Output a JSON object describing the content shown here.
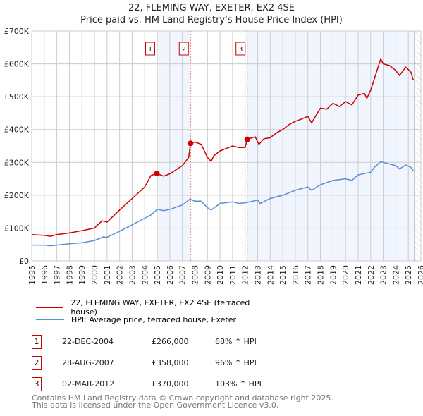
{
  "chart_data": {
    "type": "line",
    "title": "22, FLEMING WAY, EXETER, EX2 4SE",
    "subtitle": "Price paid vs. HM Land Registry's House Price Index (HPI)",
    "xlim": [
      1995,
      2026
    ],
    "ylim": [
      0,
      700000
    ],
    "x_ticks": [
      "1995",
      "1996",
      "1997",
      "1998",
      "1999",
      "2000",
      "2001",
      "2002",
      "2003",
      "2004",
      "2005",
      "2006",
      "2007",
      "2008",
      "2009",
      "2010",
      "2011",
      "2012",
      "2013",
      "2014",
      "2015",
      "2016",
      "2017",
      "2018",
      "2019",
      "2020",
      "2021",
      "2022",
      "2023",
      "2024",
      "2025",
      "2026"
    ],
    "y_ticks": [
      {
        "v": 0,
        "label": "£0"
      },
      {
        "v": 100000,
        "label": "£100K"
      },
      {
        "v": 200000,
        "label": "£200K"
      },
      {
        "v": 300000,
        "label": "£300K"
      },
      {
        "v": 400000,
        "label": "£400K"
      },
      {
        "v": 500000,
        "label": "£500K"
      },
      {
        "v": 600000,
        "label": "£600K"
      },
      {
        "v": 700000,
        "label": "£700K"
      }
    ],
    "grid": true,
    "series": [
      {
        "name": "22, FLEMING WAY, EXETER, EX2 4SE (terraced house)",
        "color": "#cc0000",
        "x": [
          1995,
          1996,
          1996.5,
          1997,
          1998,
          1999,
          2000,
          2000.6,
          2001,
          2002,
          2003,
          2004,
          2004.5,
          2004.97,
          2005.5,
          2006,
          2007,
          2007.5,
          2007.65,
          2008,
          2008.5,
          2009,
          2009.3,
          2009.5,
          2010,
          2011,
          2011.5,
          2012,
          2012.17,
          2012.8,
          2013.1,
          2013.5,
          2014,
          2014.5,
          2015,
          2015.5,
          2016,
          2016.5,
          2017,
          2017.3,
          2017.6,
          2018,
          2018.5,
          2019,
          2019.5,
          2020,
          2020.5,
          2021,
          2021.5,
          2021.7,
          2022,
          2022.3,
          2022.8,
          2023,
          2023.5,
          2024,
          2024.3,
          2024.8,
          2025.2,
          2025.4
        ],
        "y": [
          80000,
          78000,
          75000,
          80000,
          85000,
          92000,
          100000,
          122000,
          118000,
          155000,
          190000,
          225000,
          260000,
          266000,
          258000,
          265000,
          290000,
          315000,
          358000,
          362000,
          355000,
          315000,
          303000,
          320000,
          335000,
          350000,
          345000,
          345000,
          370000,
          378000,
          355000,
          372000,
          375000,
          390000,
          400000,
          415000,
          425000,
          432000,
          440000,
          420000,
          440000,
          465000,
          462000,
          480000,
          470000,
          485000,
          475000,
          505000,
          510000,
          495000,
          520000,
          555000,
          615000,
          600000,
          595000,
          580000,
          565000,
          590000,
          575000,
          550000
        ]
      },
      {
        "name": "HPI: Average price, terraced house, Exeter",
        "color": "#5b8fd4",
        "x": [
          1995,
          1996,
          1996.5,
          1997,
          1998,
          1999,
          2000,
          2000.7,
          2001,
          2002,
          2003,
          2004,
          2004.5,
          2005,
          2005.5,
          2006,
          2007,
          2007.6,
          2008,
          2008.5,
          2009,
          2009.3,
          2010,
          2011,
          2011.5,
          2012,
          2013,
          2013.2,
          2014,
          2015,
          2016,
          2017,
          2017.3,
          2018,
          2019,
          2020,
          2020.5,
          2021,
          2022,
          2022.3,
          2022.8,
          2023,
          2024,
          2024.3,
          2024.8,
          2025.2,
          2025.4
        ],
        "y": [
          48000,
          48000,
          46000,
          48000,
          52000,
          55000,
          62000,
          73000,
          72000,
          90000,
          110000,
          130000,
          140000,
          157000,
          153000,
          157000,
          170000,
          188000,
          182000,
          182000,
          162000,
          155000,
          175000,
          180000,
          175000,
          177000,
          185000,
          175000,
          190000,
          200000,
          215000,
          225000,
          215000,
          232000,
          245000,
          250000,
          245000,
          262000,
          270000,
          285000,
          302000,
          300000,
          290000,
          280000,
          292000,
          285000,
          275000
        ]
      }
    ],
    "sales": [
      {
        "id": "1",
        "x": 2004.97,
        "y": 266000,
        "date": "22-DEC-2004",
        "price": "£266,000",
        "hpi": "68% ↑ HPI"
      },
      {
        "id": "2",
        "x": 2007.65,
        "y": 358000,
        "date": "28-AUG-2007",
        "price": "£358,000",
        "hpi": "96% ↑ HPI"
      },
      {
        "id": "3",
        "x": 2012.17,
        "y": 370000,
        "date": "02-MAR-2012",
        "price": "£370,000",
        "hpi": "103% ↑ HPI"
      }
    ],
    "shaded_ranges": [
      [
        2004.97,
        2007.65
      ],
      [
        2012.17,
        2025.5
      ]
    ],
    "hatched_from": 2025.5,
    "legend_position": "below"
  },
  "footer": [
    "Contains HM Land Registry data © Crown copyright and database right 2025.",
    "This data is licensed under the Open Government Licence v3.0."
  ]
}
